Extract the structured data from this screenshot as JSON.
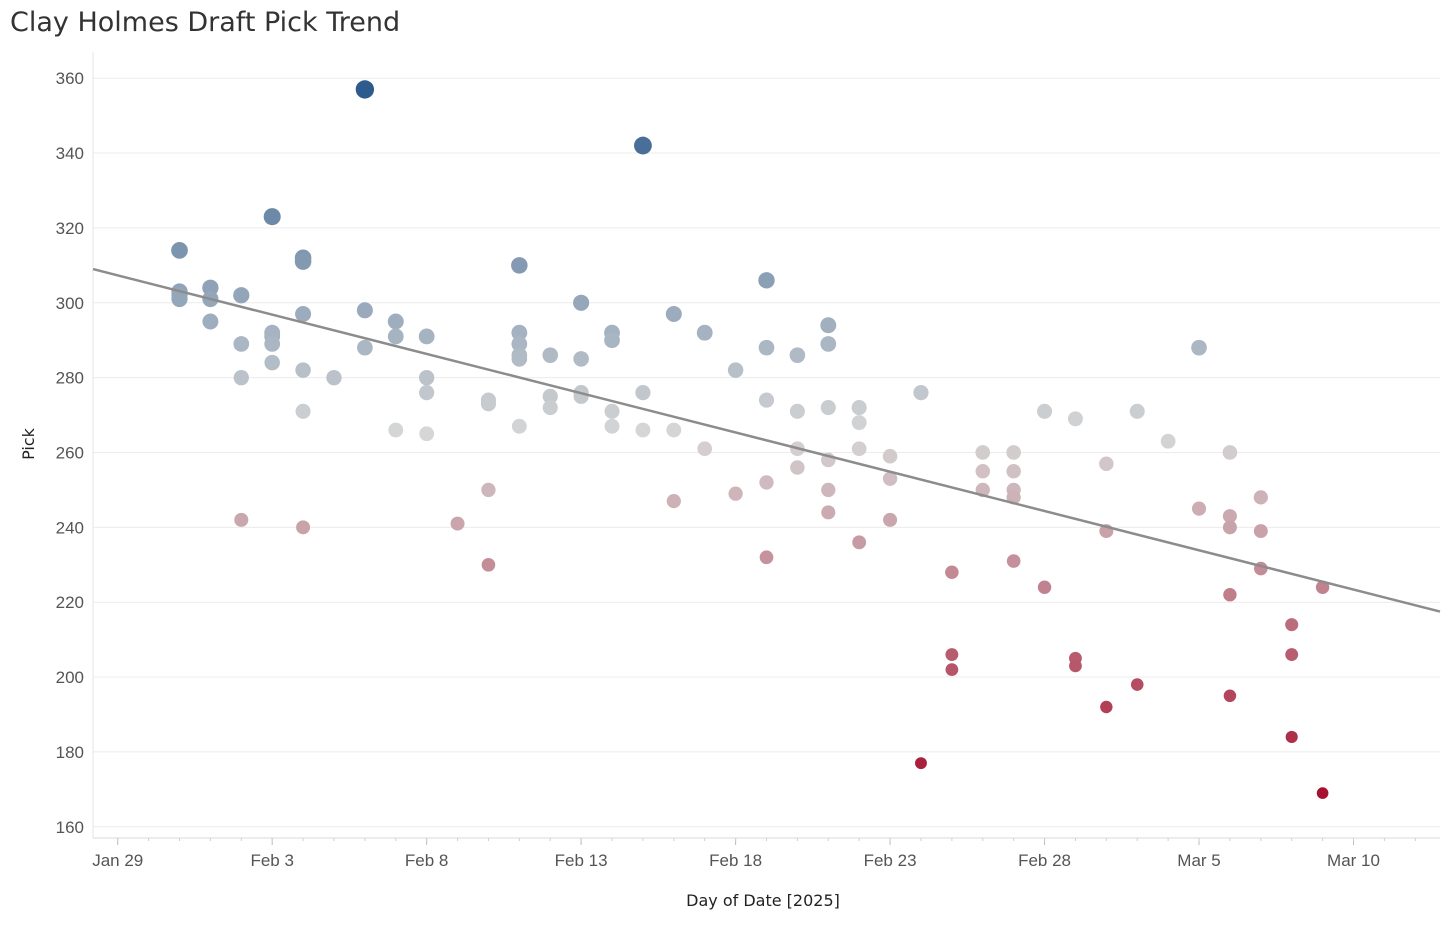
{
  "chart_data": {
    "type": "scatter",
    "title": "Clay Holmes Draft Pick Trend",
    "xlabel": "Day of Date [2025]",
    "ylabel": "Pick",
    "x_ticks": [
      {
        "day": 0,
        "label": "Jan 29"
      },
      {
        "day": 5,
        "label": "Feb 3"
      },
      {
        "day": 10,
        "label": "Feb 8"
      },
      {
        "day": 15,
        "label": "Feb 13"
      },
      {
        "day": 20,
        "label": "Feb 18"
      },
      {
        "day": 25,
        "label": "Feb 23"
      },
      {
        "day": 30,
        "label": "Feb 28"
      },
      {
        "day": 35,
        "label": "Mar 5"
      },
      {
        "day": 40,
        "label": "Mar 10"
      }
    ],
    "y_ticks": [
      160,
      180,
      200,
      220,
      240,
      260,
      280,
      300,
      320,
      340,
      360
    ],
    "xlim": [
      -0.8,
      42.8
    ],
    "ylim": [
      157,
      367
    ],
    "x_unit": "days since Jan 29, 2025",
    "grid": true,
    "trend_line": {
      "day_start": -0.8,
      "pick_start": 309,
      "day_end": 42.8,
      "pick_end": 217.5
    },
    "color_scale": {
      "low": "#a50f2d",
      "mid": "#d6d6d6",
      "high": "#2c5a8c",
      "low_value": 168,
      "mid_value": 265,
      "high_value": 358
    },
    "points": [
      [
        2,
        314
      ],
      [
        2,
        303
      ],
      [
        2,
        302
      ],
      [
        2,
        301
      ],
      [
        3,
        304
      ],
      [
        3,
        301
      ],
      [
        3,
        295
      ],
      [
        4,
        302
      ],
      [
        4,
        289
      ],
      [
        4,
        280
      ],
      [
        4,
        242
      ],
      [
        5,
        323
      ],
      [
        5,
        292
      ],
      [
        5,
        291
      ],
      [
        5,
        289
      ],
      [
        5,
        284
      ],
      [
        6,
        312
      ],
      [
        6,
        311
      ],
      [
        6,
        297
      ],
      [
        6,
        282
      ],
      [
        6,
        271
      ],
      [
        6,
        240
      ],
      [
        7,
        280
      ],
      [
        8,
        357
      ],
      [
        8,
        298
      ],
      [
        8,
        288
      ],
      [
        9,
        295
      ],
      [
        9,
        291
      ],
      [
        9,
        266
      ],
      [
        10,
        291
      ],
      [
        10,
        280
      ],
      [
        10,
        276
      ],
      [
        10,
        265
      ],
      [
        11,
        241
      ],
      [
        12,
        274
      ],
      [
        12,
        273
      ],
      [
        12,
        250
      ],
      [
        12,
        230
      ],
      [
        13,
        310
      ],
      [
        13,
        292
      ],
      [
        13,
        289
      ],
      [
        13,
        286
      ],
      [
        13,
        285
      ],
      [
        13,
        267
      ],
      [
        14,
        286
      ],
      [
        14,
        275
      ],
      [
        14,
        272
      ],
      [
        15,
        300
      ],
      [
        15,
        285
      ],
      [
        15,
        276
      ],
      [
        15,
        275
      ],
      [
        16,
        292
      ],
      [
        16,
        290
      ],
      [
        16,
        271
      ],
      [
        16,
        267
      ],
      [
        17,
        342
      ],
      [
        17,
        276
      ],
      [
        17,
        266
      ],
      [
        18,
        297
      ],
      [
        18,
        266
      ],
      [
        18,
        247
      ],
      [
        19,
        292
      ],
      [
        19,
        261
      ],
      [
        20,
        282
      ],
      [
        20,
        249
      ],
      [
        21,
        306
      ],
      [
        21,
        288
      ],
      [
        21,
        274
      ],
      [
        21,
        252
      ],
      [
        21,
        232
      ],
      [
        22,
        286
      ],
      [
        22,
        271
      ],
      [
        22,
        261
      ],
      [
        22,
        256
      ],
      [
        23,
        294
      ],
      [
        23,
        289
      ],
      [
        23,
        272
      ],
      [
        23,
        258
      ],
      [
        23,
        250
      ],
      [
        23,
        244
      ],
      [
        24,
        272
      ],
      [
        24,
        268
      ],
      [
        24,
        261
      ],
      [
        24,
        236
      ],
      [
        25,
        259
      ],
      [
        25,
        253
      ],
      [
        25,
        242
      ],
      [
        26,
        276
      ],
      [
        26,
        177
      ],
      [
        27,
        228
      ],
      [
        27,
        206
      ],
      [
        27,
        202
      ],
      [
        28,
        260
      ],
      [
        28,
        255
      ],
      [
        28,
        250
      ],
      [
        29,
        260
      ],
      [
        29,
        255
      ],
      [
        29,
        250
      ],
      [
        29,
        248
      ],
      [
        29,
        231
      ],
      [
        30,
        271
      ],
      [
        30,
        224
      ],
      [
        31,
        269
      ],
      [
        31,
        205
      ],
      [
        31,
        203
      ],
      [
        32,
        257
      ],
      [
        32,
        239
      ],
      [
        32,
        192
      ],
      [
        33,
        271
      ],
      [
        33,
        198
      ],
      [
        34,
        263
      ],
      [
        35,
        288
      ],
      [
        35,
        245
      ],
      [
        36,
        260
      ],
      [
        36,
        243
      ],
      [
        36,
        240
      ],
      [
        36,
        222
      ],
      [
        36,
        195
      ],
      [
        37,
        248
      ],
      [
        37,
        239
      ],
      [
        37,
        229
      ],
      [
        38,
        214
      ],
      [
        38,
        206
      ],
      [
        38,
        184
      ],
      [
        39,
        224
      ],
      [
        39,
        169
      ]
    ]
  }
}
